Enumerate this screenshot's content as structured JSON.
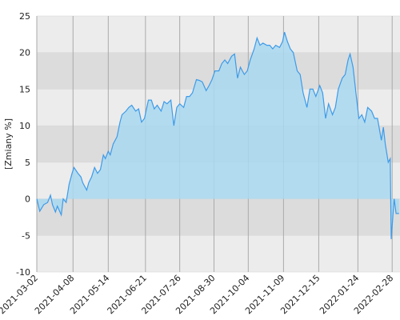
{
  "chart_data": {
    "type": "area",
    "y_label": "[Zmiany %]",
    "x": [
      "2021-03-02",
      "2021-03-05",
      "2021-03-09",
      "2021-03-13",
      "2021-03-16",
      "2021-03-18",
      "2021-03-21",
      "2021-03-23",
      "2021-03-27",
      "2021-03-29",
      "2021-04-01",
      "2021-04-04",
      "2021-04-07",
      "2021-04-09",
      "2021-04-13",
      "2021-04-16",
      "2021-04-18",
      "2021-04-22",
      "2021-04-24",
      "2021-04-27",
      "2021-04-30",
      "2021-05-03",
      "2021-05-06",
      "2021-05-09",
      "2021-05-11",
      "2021-05-14",
      "2021-05-16",
      "2021-05-19",
      "2021-05-23",
      "2021-05-26",
      "2021-05-28",
      "2021-06-01",
      "2021-06-04",
      "2021-06-07",
      "2021-06-11",
      "2021-06-14",
      "2021-06-17",
      "2021-06-20",
      "2021-06-24",
      "2021-06-27",
      "2021-06-30",
      "2021-07-03",
      "2021-07-07",
      "2021-07-10",
      "2021-07-13",
      "2021-07-17",
      "2021-07-20",
      "2021-07-23",
      "2021-07-26",
      "2021-07-30",
      "2021-08-02",
      "2021-08-05",
      "2021-08-08",
      "2021-08-12",
      "2021-08-15",
      "2021-08-18",
      "2021-08-22",
      "2021-08-25",
      "2021-08-28",
      "2021-08-31",
      "2021-09-04",
      "2021-09-07",
      "2021-09-10",
      "2021-09-13",
      "2021-09-17",
      "2021-09-20",
      "2021-09-23",
      "2021-09-26",
      "2021-09-30",
      "2021-10-03",
      "2021-10-06",
      "2021-10-10",
      "2021-10-13",
      "2021-10-16",
      "2021-10-19",
      "2021-10-23",
      "2021-10-26",
      "2021-10-29",
      "2021-11-01",
      "2021-11-05",
      "2021-11-08",
      "2021-11-10",
      "2021-11-13",
      "2021-11-16",
      "2021-11-19",
      "2021-11-23",
      "2021-11-26",
      "2021-11-29",
      "2021-12-03",
      "2021-12-06",
      "2021-12-09",
      "2021-12-12",
      "2021-12-16",
      "2021-12-19",
      "2021-12-22",
      "2021-12-25",
      "2021-12-29",
      "2022-01-01",
      "2022-01-04",
      "2022-01-08",
      "2022-01-11",
      "2022-01-14",
      "2022-01-16",
      "2022-01-19",
      "2022-01-22",
      "2022-01-25",
      "2022-01-28",
      "2022-01-31",
      "2022-02-03",
      "2022-02-07",
      "2022-02-10",
      "2022-02-13",
      "2022-02-17",
      "2022-02-19",
      "2022-02-21",
      "2022-02-24",
      "2022-02-26",
      "2022-02-27",
      "2022-03-02",
      "2022-03-04",
      "2022-03-07"
    ],
    "values": [
      0,
      -1.7,
      -0.8,
      -0.5,
      0.5,
      -0.8,
      -1.8,
      -1,
      -2.2,
      0,
      -0.5,
      2,
      3.5,
      4.3,
      3.5,
      3,
      2.2,
      1.2,
      2.2,
      3,
      4.3,
      3.5,
      4,
      6,
      5.5,
      6.5,
      6,
      7.5,
      8.5,
      10.5,
      11.5,
      12,
      12.5,
      12.8,
      12,
      12.3,
      10.5,
      11,
      13.5,
      13.5,
      12.3,
      12.8,
      12,
      13.3,
      13,
      13.5,
      10,
      12.5,
      13,
      12.5,
      14,
      14,
      14.5,
      16.3,
      16.2,
      16,
      14.8,
      15.5,
      16.3,
      17.5,
      17.5,
      18.5,
      19,
      18.5,
      19.5,
      19.8,
      16.5,
      18,
      17,
      17.5,
      19,
      20.5,
      22,
      21,
      21.3,
      21,
      21,
      20.5,
      21,
      20.7,
      21.5,
      22.8,
      21.5,
      20.5,
      20,
      17.5,
      17,
      14.5,
      12.5,
      15,
      15,
      14,
      15.5,
      14.5,
      11,
      13,
      11.5,
      12.5,
      15,
      16.5,
      17,
      19,
      19.8,
      18,
      14.5,
      11,
      11.5,
      10.5,
      12.5,
      12,
      11,
      11,
      8,
      9.8,
      7.5,
      5,
      5.5,
      -5.5,
      0,
      -2,
      -2
    ],
    "color": "#3d9be9",
    "fill": "#a9d8f0",
    "xlim": [
      "2021-03-02",
      "2022-03-08"
    ],
    "xticks": [
      "2021-03-02",
      "2021-04-08",
      "2021-05-14",
      "2021-06-21",
      "2021-07-26",
      "2021-08-30",
      "2021-10-04",
      "2021-11-09",
      "2021-12-15",
      "2022-01-24",
      "2022-02-28"
    ],
    "ylim": [
      -10,
      25
    ],
    "yticks": [
      -10,
      -5,
      0,
      5,
      10,
      15,
      20,
      25
    ],
    "grid": true
  }
}
